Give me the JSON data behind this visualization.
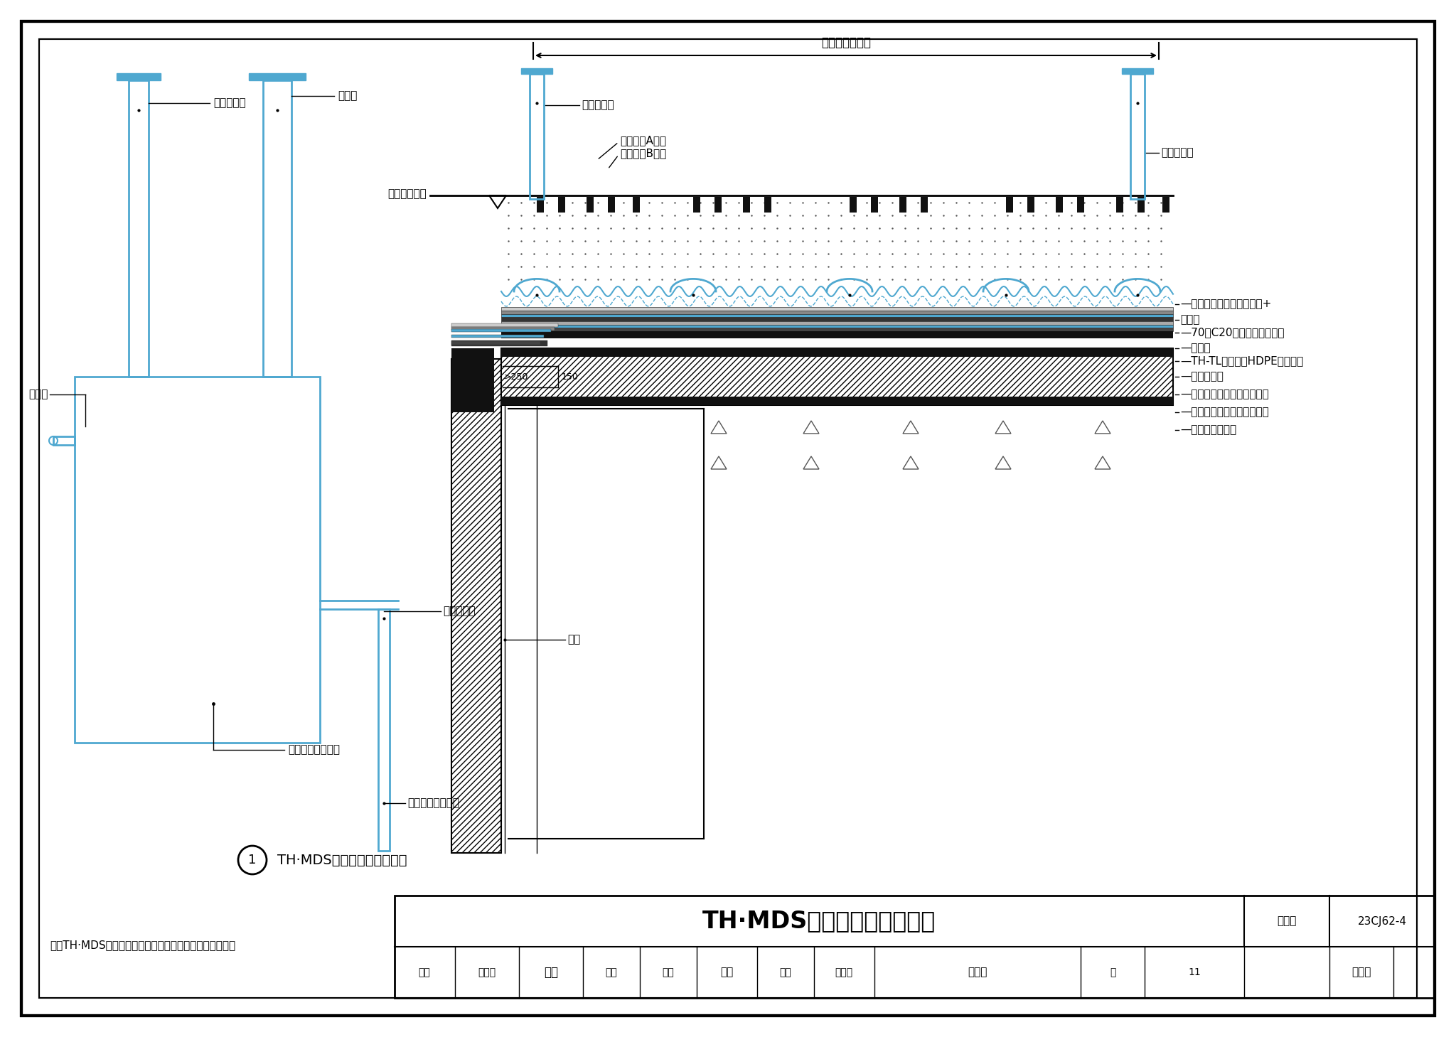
{
  "bg_color": "#ffffff",
  "blue": "#4fa8d0",
  "black": "#000000",
  "title_table": "TH·MDS防、排水系统示意图",
  "fig_no": "23CJ62-4",
  "page_no": "11",
  "note": "注：TH·MDS排水系统设计及配件的设置见具体工程设计。",
  "diagram_label": "TH·MDS防、排水系统示意图",
  "label_touqi1": "透气观察管",
  "label_guanchajing": "观察井",
  "label_yishui": "溢水管",
  "label_jishui": "集水笼外包土工布",
  "label_xihong": "虚吸排水管",
  "label_jiance": "智能监测电子模块",
  "label_ceqiang": "侧墙",
  "label_jiangjuti": "见具体工程设计",
  "label_touqi2": "透气观察管",
  "label_touqi3": "透气观察管",
  "label_shiwai": "室外地面标高",
  "label_daoliu_A": "导流槽（A型）",
  "label_daoliu_B": "导流槽（B型）",
  "layers": [
    "—复合异型片（凸点向上）+",
    "导流槽",
    "—70厚C20细石混凝土保护层",
    "—隔离层",
    "—TH-TL耐根穿刺HDPE防水卷材",
    "—普通防水层",
    "—找平层（见具体工程设计）",
    "—保温层（见具体工程设计）",
    "—防水混凝土顶板"
  ]
}
